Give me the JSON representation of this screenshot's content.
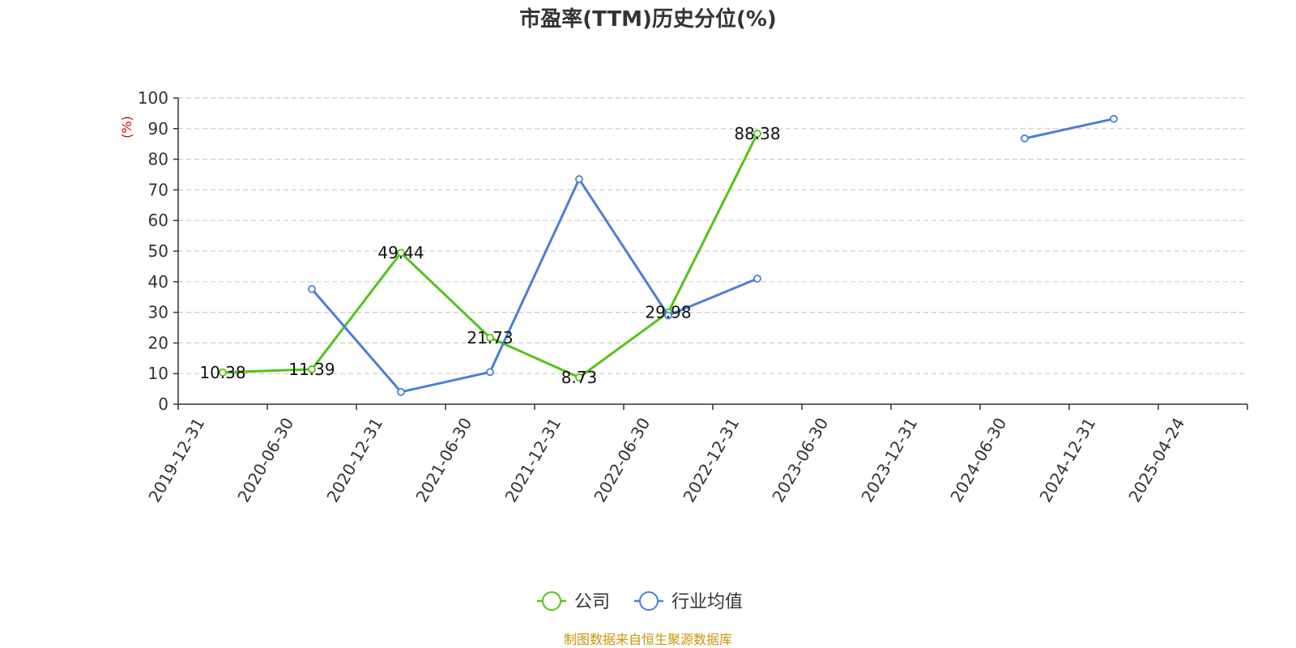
{
  "chart_data": {
    "type": "line",
    "title": "市盈率(TTM)历史分位(%)",
    "ylabel": "(%)",
    "xlabel": "",
    "ylim": [
      0,
      100
    ],
    "yticks": [
      0,
      10,
      20,
      30,
      40,
      50,
      60,
      70,
      80,
      90,
      100
    ],
    "grid": true,
    "legend_position": "bottom-center",
    "categories": [
      "2019-12-31",
      "2020-06-30",
      "2020-12-31",
      "2021-06-30",
      "2021-12-31",
      "2022-06-30",
      "2022-12-31",
      "2023-06-30",
      "2023-12-31",
      "2024-06-30",
      "2024-12-31",
      "2025-04-24"
    ],
    "series": [
      {
        "name": "公司",
        "color": "#52c41a",
        "values": [
          10.38,
          11.39,
          49.44,
          21.73,
          8.73,
          29.98,
          88.38,
          null,
          null,
          null,
          null,
          null
        ],
        "show_labels": true
      },
      {
        "name": "行业均值",
        "color": "#4a7fd8",
        "values": [
          null,
          37.6,
          4.0,
          10.5,
          73.5,
          29.0,
          41.0,
          null,
          null,
          86.8,
          93.2,
          null
        ],
        "show_labels": false
      }
    ],
    "source": "制图数据来自恒生聚源数据库"
  }
}
